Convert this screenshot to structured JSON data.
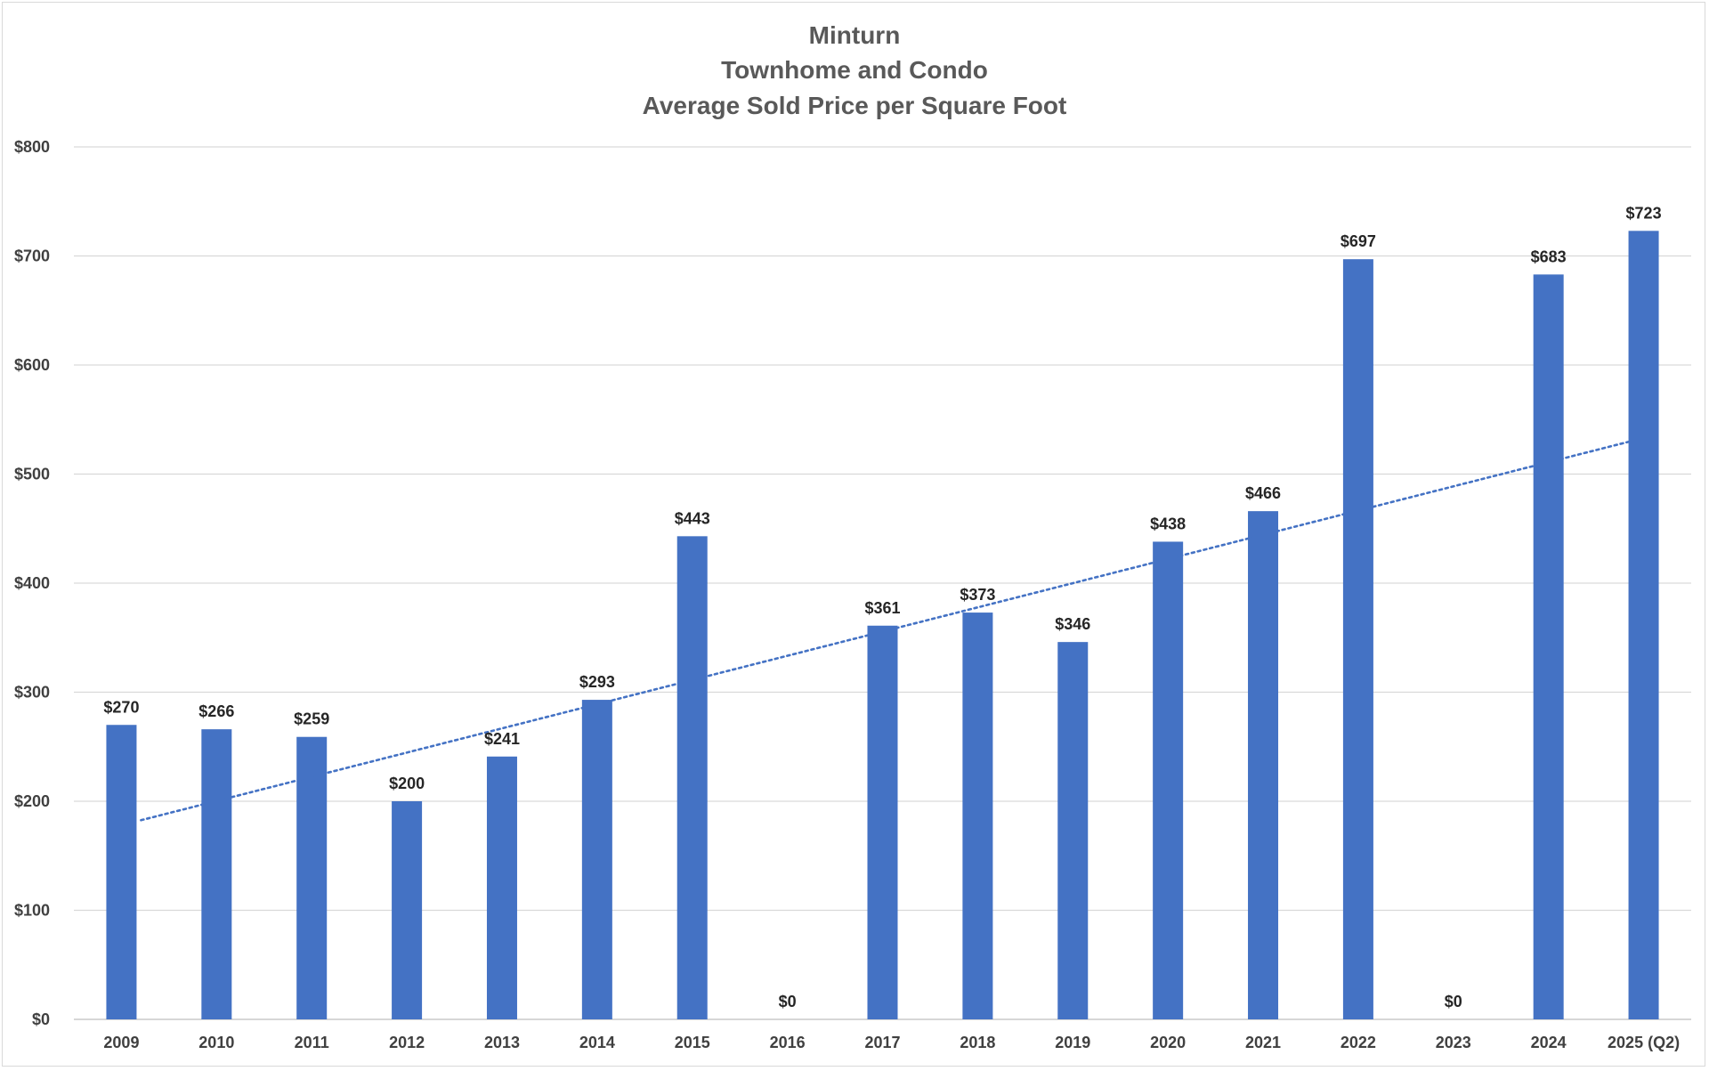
{
  "chart_data": {
    "type": "bar",
    "title": [
      "Minturn",
      "Townhome and Condo",
      "Average Sold Price per Square Foot"
    ],
    "xlabel": "",
    "ylabel": "",
    "categories": [
      "2009",
      "2010",
      "2011",
      "2012",
      "2013",
      "2014",
      "2015",
      "2016",
      "2017",
      "2018",
      "2019",
      "2020",
      "2021",
      "2022",
      "2023",
      "2024",
      "2025 (Q2)"
    ],
    "values": [
      270,
      266,
      259,
      200,
      241,
      293,
      443,
      0,
      361,
      373,
      346,
      438,
      466,
      697,
      0,
      683,
      723
    ],
    "value_labels": [
      "$270",
      "$266",
      "$259",
      "$200",
      "$241",
      "$293",
      "$443",
      "$0",
      "$361",
      "$373",
      "$346",
      "$438",
      "$466",
      "$697",
      "$0",
      "$683",
      "$723"
    ],
    "ylim": [
      0,
      800
    ],
    "y_ticks": [
      0,
      100,
      200,
      300,
      400,
      500,
      600,
      700,
      800
    ],
    "y_tick_labels": [
      "$0",
      "$100",
      "$200",
      "$300",
      "$400",
      "$500",
      "$600",
      "$700",
      "$800"
    ],
    "bar_color": "#4472c4",
    "trendline": {
      "type": "linear",
      "style": "dotted",
      "color": "#4472c4"
    },
    "grid": true,
    "legend": "none"
  }
}
